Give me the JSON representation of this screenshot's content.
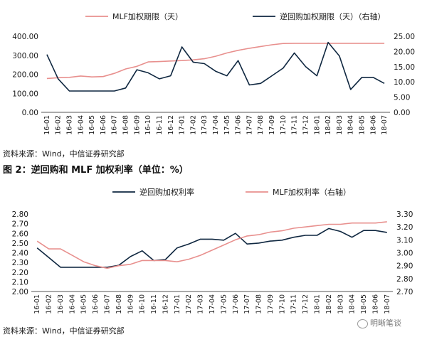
{
  "sources": {
    "top": "资料来源：Wind，中信证券研究部",
    "bottom": "资料来源：Wind，中信证券研究部"
  },
  "figure2_title": "图 2：逆回购和 MLF 加权利率（单位：%）",
  "watermark": "明晰笔谈",
  "chart_data": [
    {
      "type": "line",
      "categories": [
        "16-01",
        "16-02",
        "16-03",
        "16-04",
        "16-05",
        "16-06",
        "16-07",
        "16-08",
        "16-09",
        "16-10",
        "16-11",
        "16-12",
        "17-01",
        "17-02",
        "17-03",
        "17-04",
        "17-05",
        "17-06",
        "17-07",
        "17-08",
        "17-09",
        "17-10",
        "17-11",
        "17-12",
        "18-01",
        "18-02",
        "18-03",
        "18-04",
        "18-05",
        "18-06",
        "18-07"
      ],
      "left_axis": {
        "ylim": [
          0,
          400
        ],
        "ticks": [
          "0.00",
          "100.00",
          "200.00",
          "300.00",
          "400.00"
        ]
      },
      "right_axis": {
        "ylim": [
          0,
          25
        ],
        "ticks": [
          "0.00",
          "5.00",
          "10.00",
          "15.00",
          "20.00",
          "25.00"
        ]
      },
      "series": [
        {
          "name": "MLF加权期限（天）",
          "axis": "left",
          "color": "#e8908e",
          "values": [
            178,
            182,
            184,
            191,
            186,
            188,
            205,
            228,
            242,
            265,
            267,
            270,
            272,
            276,
            282,
            295,
            312,
            326,
            337,
            346,
            355,
            362,
            363,
            363,
            363,
            363,
            363,
            363,
            363,
            363,
            363
          ]
        },
        {
          "name": "逆回购加权期限（天）（右轴）",
          "axis": "right",
          "color": "#0f2740",
          "values": [
            19,
            11,
            7,
            7,
            7,
            7,
            7,
            8,
            14,
            13,
            11,
            12,
            21.5,
            16.5,
            16,
            13.5,
            12,
            17,
            9,
            9.5,
            12,
            14.5,
            19.5,
            15,
            12,
            23,
            18.5,
            7.5,
            11.5,
            11.5,
            9.5
          ]
        }
      ],
      "legend": "top"
    },
    {
      "type": "line",
      "categories": [
        "16-01",
        "16-02",
        "16-03",
        "16-04",
        "16-05",
        "16-06",
        "16-07",
        "16-08",
        "16-09",
        "16-10",
        "16-11",
        "16-12",
        "17-01",
        "17-02",
        "17-03",
        "17-04",
        "17-05",
        "17-06",
        "17-07",
        "17-08",
        "17-09",
        "17-10",
        "17-11",
        "17-12",
        "18-01",
        "18-02",
        "18-03",
        "18-04",
        "18-05",
        "18-06",
        "18-07"
      ],
      "left_axis": {
        "ylim": [
          2.0,
          2.8
        ],
        "ticks": [
          "2.00",
          "2.10",
          "2.20",
          "2.30",
          "2.40",
          "2.50",
          "2.60",
          "2.70",
          "2.80"
        ]
      },
      "right_axis": {
        "ylim": [
          2.7,
          3.3
        ],
        "ticks": [
          "2.70",
          "2.80",
          "2.90",
          "3.00",
          "3.10",
          "3.20",
          "3.30"
        ]
      },
      "series": [
        {
          "name": "逆回购加权利率",
          "axis": "left",
          "color": "#0f2740",
          "values": [
            2.45,
            2.35,
            2.25,
            2.25,
            2.25,
            2.25,
            2.25,
            2.27,
            2.36,
            2.42,
            2.32,
            2.33,
            2.45,
            2.49,
            2.54,
            2.54,
            2.53,
            2.6,
            2.49,
            2.5,
            2.52,
            2.53,
            2.56,
            2.58,
            2.58,
            2.65,
            2.62,
            2.56,
            2.63,
            2.63,
            2.61
          ]
        },
        {
          "name": "MLF加权利率（右轴）",
          "axis": "right",
          "color": "#e8908e",
          "values": [
            3.09,
            3.03,
            3.03,
            2.98,
            2.93,
            2.9,
            2.88,
            2.9,
            2.91,
            2.94,
            2.94,
            2.94,
            2.93,
            2.95,
            2.98,
            3.02,
            3.06,
            3.1,
            3.13,
            3.14,
            3.16,
            3.17,
            3.19,
            3.2,
            3.21,
            3.22,
            3.22,
            3.23,
            3.23,
            3.23,
            3.24
          ]
        }
      ],
      "legend": "top"
    }
  ]
}
